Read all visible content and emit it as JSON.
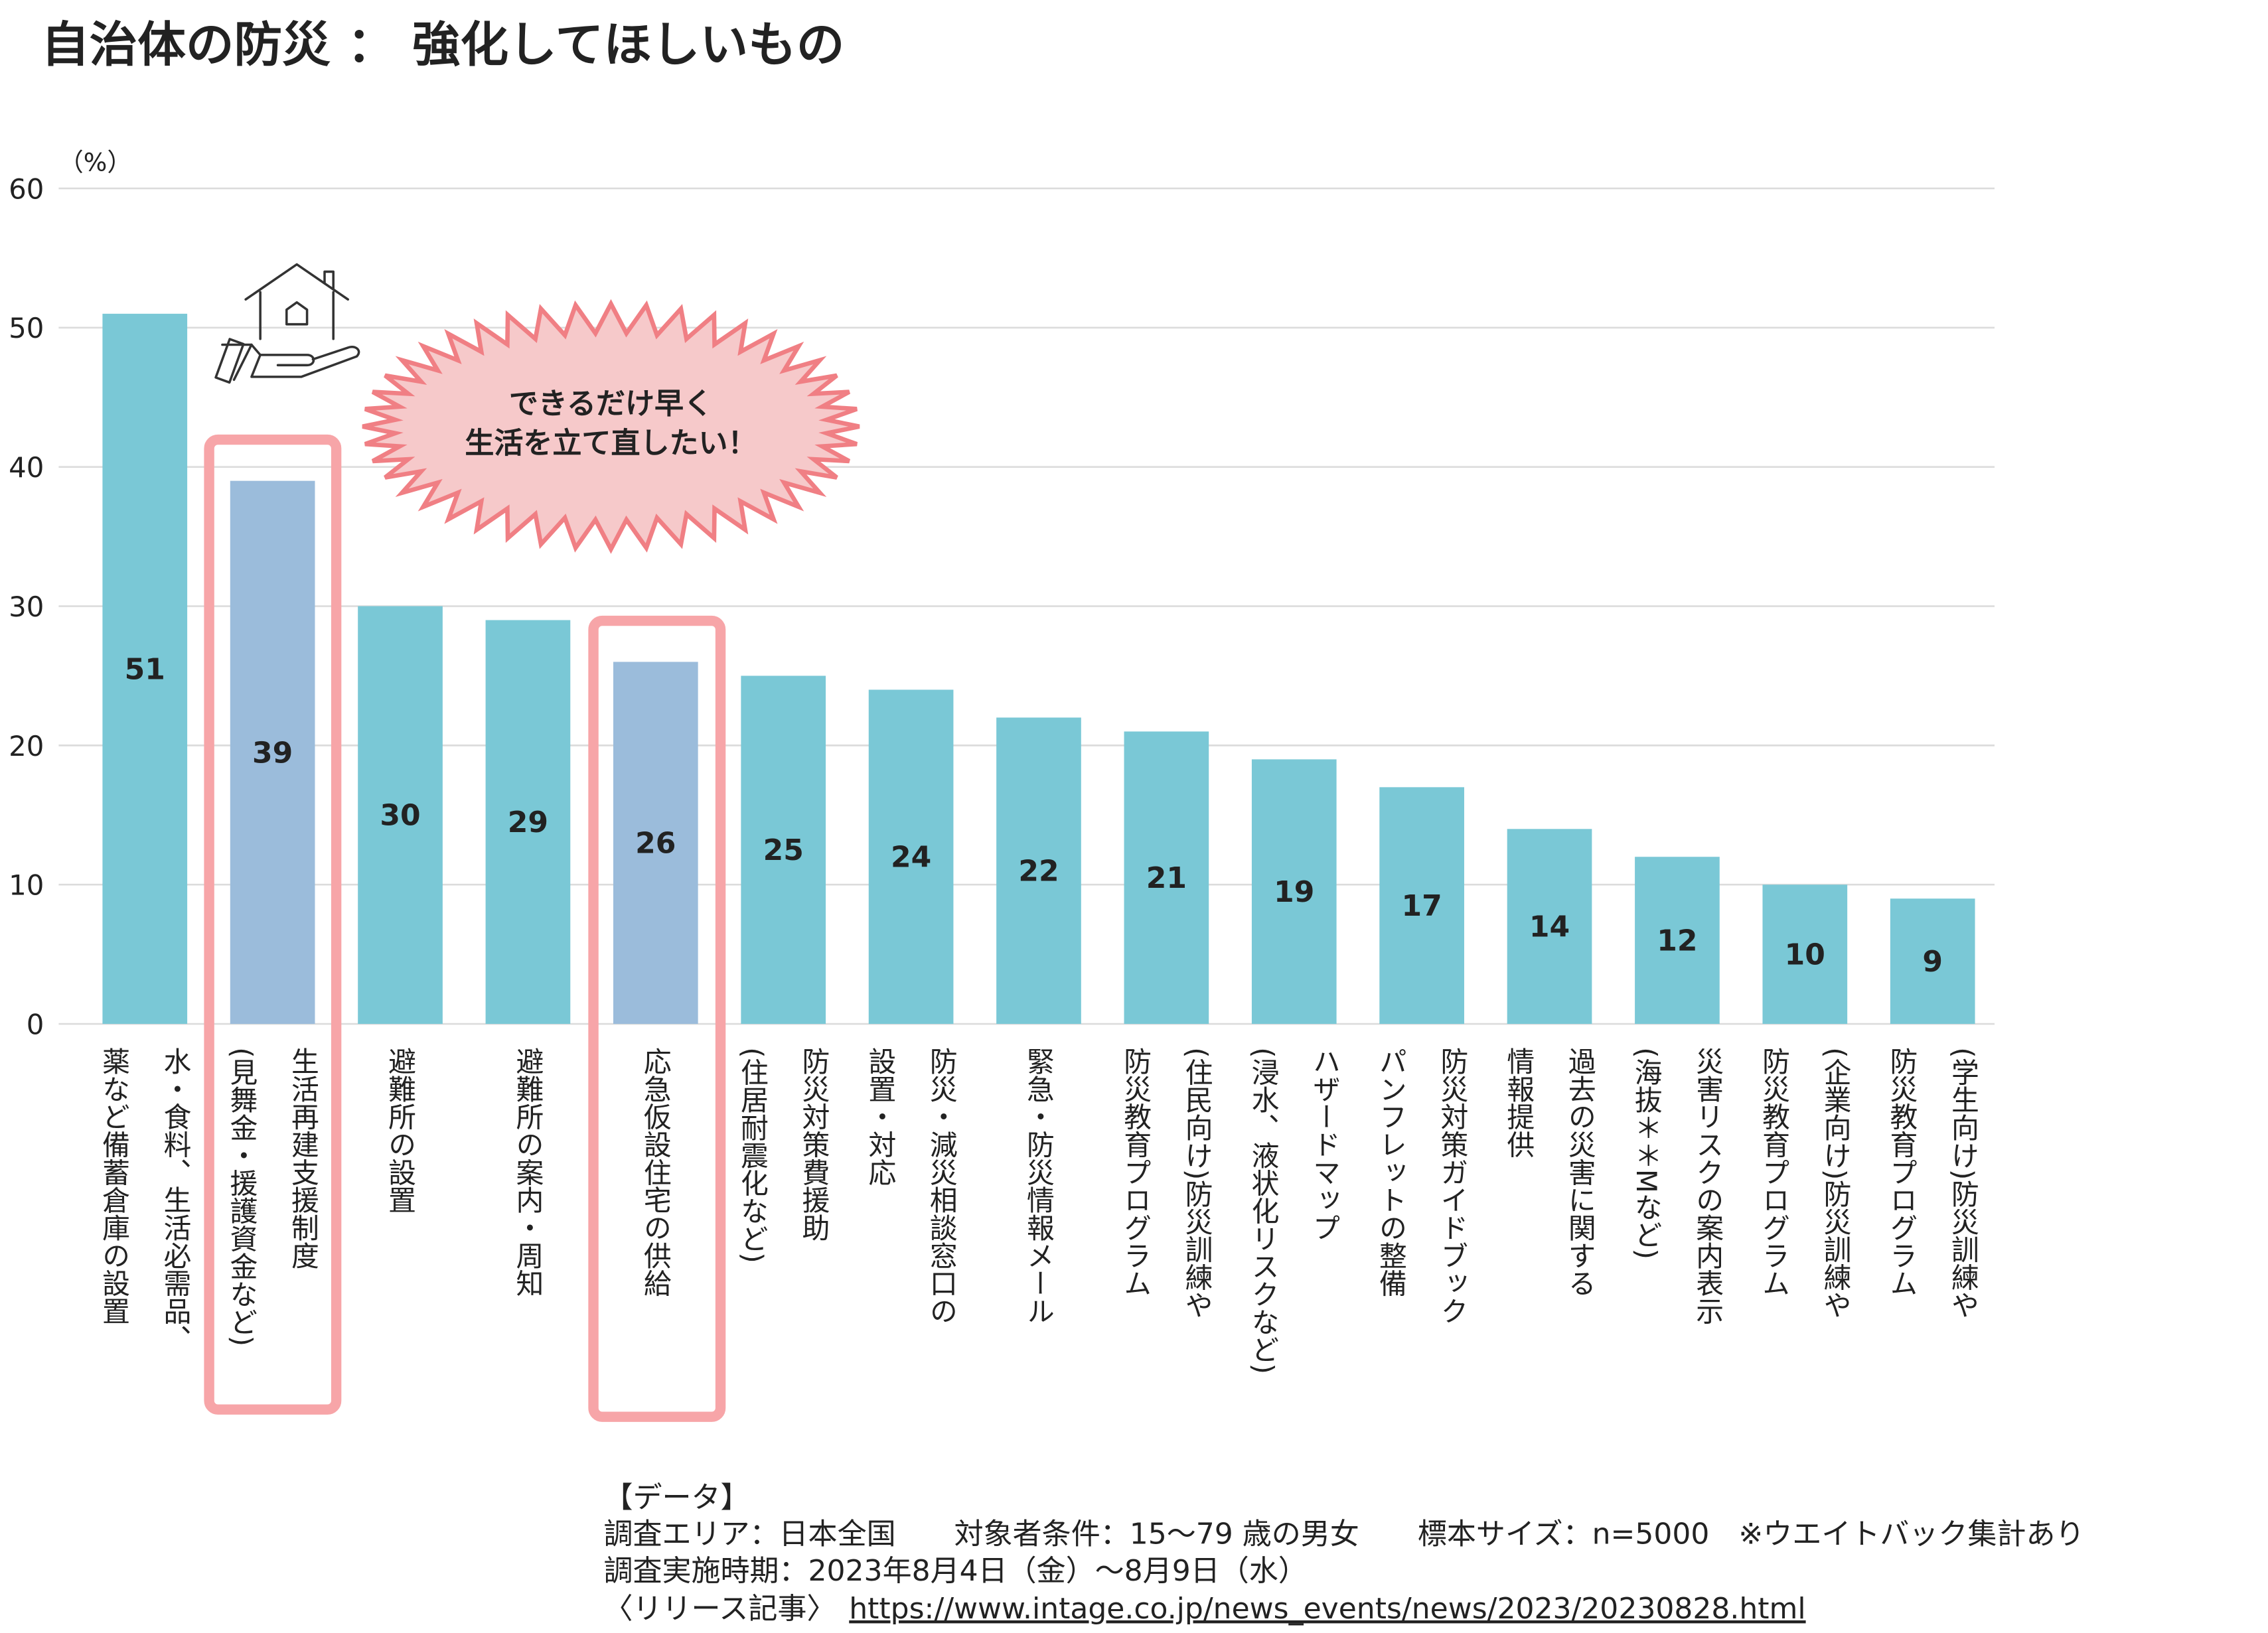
{
  "chart_data": {
    "type": "bar",
    "title": "自治体の防災 ： 強化してほしいもの",
    "y_unit_label": "（%）",
    "categories": [
      [
        "水・食料、生活必需品、",
        "薬など備蓄倉庫の設置"
      ],
      [
        "生活再建支援制度",
        "(見舞金・援護資金など)"
      ],
      [
        "避難所の設置"
      ],
      [
        "避難所の案内・周知"
      ],
      [
        "応急仮設住宅の供給"
      ],
      [
        "防災対策費援助",
        "(住居耐震化など)"
      ],
      [
        "防災・減災相談窓口の",
        "設置・対応"
      ],
      [
        "緊急・防災情報メール"
      ],
      [
        "(住民向け)防災訓練や",
        "防災教育プログラム"
      ],
      [
        "ハザードマップ",
        "(浸水、液状化リスクなど)"
      ],
      [
        "防災対策ガイドブック",
        "パンフレットの整備"
      ],
      [
        "過去の災害に関する",
        "情報提供"
      ],
      [
        "災害リスクの案内表示",
        "(海抜＊＊Mなど)"
      ],
      [
        "(企業向け)防災訓練や",
        "防災教育プログラム"
      ],
      [
        "(学生向け)防災訓練や",
        "防災教育プログラム"
      ]
    ],
    "values": [
      51,
      39,
      30,
      29,
      26,
      25,
      24,
      22,
      21,
      19,
      17,
      14,
      12,
      10,
      9
    ],
    "colors": [
      "#7ac8d6",
      "#9bbcdb",
      "#7ac8d6",
      "#7ac8d6",
      "#9bbcdb",
      "#7ac8d6",
      "#7ac8d6",
      "#7ac8d6",
      "#7ac8d6",
      "#7ac8d6",
      "#7ac8d6",
      "#7ac8d6",
      "#7ac8d6",
      "#7ac8d6",
      "#7ac8d6"
    ],
    "ylim": [
      0,
      60
    ],
    "yticks": [
      0,
      10,
      20,
      30,
      40,
      50,
      60
    ],
    "grid": true,
    "annotation": [
      "できるだけ早く",
      "生活を立て直したい！"
    ]
  },
  "footer": {
    "heading": "【データ】",
    "lines": [
      "調査エリア：日本全国　　対象者条件：15～79 歳の男女　　標本サイズ：n=5000　※ウエイトバック集計あり",
      "調査実施時期：2023年8月4日（金）～8月9日（水）"
    ],
    "release_label": "〈リリース記事〉",
    "release_url": "https://www.intage.co.jp/news_events/news/2023/20230828.html"
  }
}
